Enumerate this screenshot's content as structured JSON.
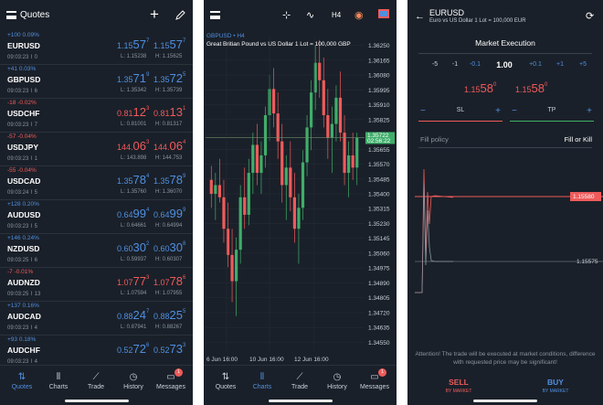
{
  "quotes": {
    "title": "Quotes",
    "rows": [
      {
        "change": "+100 0.09%",
        "dir": "pos",
        "symbol": "EURUSD",
        "time": "09:03:23 ⌇ 0",
        "bid_main": "1.15",
        "bid_big": "57",
        "bid_sup": "7",
        "ask_main": "1.15",
        "ask_big": "57",
        "ask_sup": "7",
        "low": "L: 1.15238",
        "high": "H: 1.15625",
        "bid_dir": "pos",
        "ask_dir": "pos"
      },
      {
        "change": "+41 0.03%",
        "dir": "pos",
        "symbol": "GBPUSD",
        "time": "09:03:23 ⌇ 6",
        "bid_main": "1.35",
        "bid_big": "71",
        "bid_sup": "9",
        "ask_main": "1.35",
        "ask_big": "72",
        "ask_sup": "5",
        "low": "L: 1.35342",
        "high": "H: 1.35739",
        "bid_dir": "pos",
        "ask_dir": "pos"
      },
      {
        "change": "-18 -0.02%",
        "dir": "neg",
        "symbol": "USDCHF",
        "time": "09:03:23 ⌇ 7",
        "bid_main": "0.81",
        "bid_big": "12",
        "bid_sup": "3",
        "ask_main": "0.81",
        "ask_big": "13",
        "ask_sup": "1",
        "low": "L: 0.81001",
        "high": "H: 0.81317",
        "bid_dir": "neg",
        "ask_dir": "neg"
      },
      {
        "change": "-57 -0.04%",
        "dir": "neg",
        "symbol": "USDJPY",
        "time": "09:03:23 ⌇ 1",
        "bid_main": "144.",
        "bid_big": "06",
        "bid_sup": "3",
        "ask_main": "144.",
        "ask_big": "06",
        "ask_sup": "4",
        "low": "L: 143.898",
        "high": "H: 144.753",
        "bid_dir": "neg",
        "ask_dir": "neg"
      },
      {
        "change": "-55 -0.04%",
        "dir": "neg",
        "symbol": "USDCAD",
        "time": "09:03:24 ⌇ 5",
        "bid_main": "1.35",
        "bid_big": "78",
        "bid_sup": "4",
        "ask_main": "1.35",
        "ask_big": "78",
        "ask_sup": "9",
        "low": "L: 1.35760",
        "high": "H: 1.36070",
        "bid_dir": "pos",
        "ask_dir": "pos"
      },
      {
        "change": "+128 0.20%",
        "dir": "pos",
        "symbol": "AUDUSD",
        "time": "09:03:23 ⌇ 5",
        "bid_main": "0.64",
        "bid_big": "99",
        "bid_sup": "4",
        "ask_main": "0.64",
        "ask_big": "99",
        "ask_sup": "9",
        "low": "L: 0.64661",
        "high": "H: 0.64994",
        "bid_dir": "pos",
        "ask_dir": "pos"
      },
      {
        "change": "+146 0.24%",
        "dir": "pos",
        "symbol": "NZDUSD",
        "time": "09:03:25 ⌇ 6",
        "bid_main": "0.60",
        "bid_big": "30",
        "bid_sup": "2",
        "ask_main": "0.60",
        "ask_big": "30",
        "ask_sup": "8",
        "low": "L: 0.59937",
        "high": "H: 0.60307",
        "bid_dir": "pos",
        "ask_dir": "pos"
      },
      {
        "change": "-7 -0.01%",
        "dir": "neg",
        "symbol": "AUDNZD",
        "time": "09:03:25 ⌇ 13",
        "bid_main": "1.07",
        "bid_big": "77",
        "bid_sup": "3",
        "ask_main": "1.07",
        "ask_big": "78",
        "ask_sup": "6",
        "low": "L: 1.07594",
        "high": "H: 1.07955",
        "bid_dir": "neg",
        "ask_dir": "neg"
      },
      {
        "change": "+137 0.16%",
        "dir": "pos",
        "symbol": "AUDCAD",
        "time": "09:03:23 ⌇ 4",
        "bid_main": "0.88",
        "bid_big": "24",
        "bid_sup": "7",
        "ask_main": "0.88",
        "ask_big": "25",
        "ask_sup": "5",
        "low": "L: 0.87941",
        "high": "H: 0.88267",
        "bid_dir": "pos",
        "ask_dir": "pos"
      },
      {
        "change": "+93 0.18%",
        "dir": "pos",
        "symbol": "AUDCHF",
        "time": "09:03:23 ⌇ 4",
        "bid_main": "0.52",
        "bid_big": "72",
        "bid_sup": "6",
        "ask_main": "0.52",
        "ask_big": "73",
        "ask_sup": "3",
        "low": "",
        "high": "",
        "bid_dir": "pos",
        "ask_dir": "pos"
      }
    ]
  },
  "nav": {
    "quotes": "Quotes",
    "charts": "Charts",
    "trade": "Trade",
    "history": "History",
    "messages": "Messages",
    "badge": "1"
  },
  "chart": {
    "timeframe": "H4",
    "legend_symbol": "GBPUSD • H4",
    "legend_desc": "Great Britian Pound vs US Dollar 1 Lot = 100,000 GBP",
    "current_price": "1.35722",
    "current_time": "02:56:22"
  },
  "chart_data": {
    "type": "candlestick",
    "title": "GBPUSD • H4",
    "y_ticks": [
      "1.36250",
      "1.36165",
      "1.36080",
      "1.35995",
      "1.35910",
      "1.35825",
      "1.35740",
      "1.35655",
      "1.35570",
      "1.35485",
      "1.35400",
      "1.35315",
      "1.35230",
      "1.35145",
      "1.35060",
      "1.34975",
      "1.34890",
      "1.34805",
      "1.34720",
      "1.34635",
      "1.34550"
    ],
    "ylim": [
      1.345,
      1.363
    ],
    "x_ticks": [
      "6 Jun 16:00",
      "10 Jun 16:00",
      "12 Jun 16:00"
    ],
    "candles": [
      [
        1.3548,
        1.3556,
        1.3532,
        1.354
      ],
      [
        1.354,
        1.3552,
        1.3525,
        1.3545
      ],
      [
        1.3545,
        1.356,
        1.3535,
        1.3538
      ],
      [
        1.3538,
        1.3548,
        1.3512,
        1.352
      ],
      [
        1.352,
        1.3535,
        1.3498,
        1.3505
      ],
      [
        1.3505,
        1.352,
        1.3478,
        1.349
      ],
      [
        1.349,
        1.3515,
        1.347,
        1.3508
      ],
      [
        1.3508,
        1.3545,
        1.35,
        1.3538
      ],
      [
        1.3538,
        1.3555,
        1.352,
        1.3528
      ],
      [
        1.3528,
        1.356,
        1.3522,
        1.3552
      ],
      [
        1.3552,
        1.3575,
        1.354,
        1.3568
      ],
      [
        1.3568,
        1.358,
        1.3545,
        1.3552
      ],
      [
        1.3552,
        1.357,
        1.354,
        1.3562
      ],
      [
        1.3562,
        1.359,
        1.3555,
        1.3585
      ],
      [
        1.3585,
        1.3608,
        1.357,
        1.36
      ],
      [
        1.36,
        1.3612,
        1.3578,
        1.3586
      ],
      [
        1.3586,
        1.3598,
        1.356,
        1.357
      ],
      [
        1.357,
        1.358,
        1.3535,
        1.3545
      ],
      [
        1.3545,
        1.3562,
        1.3525,
        1.3555
      ],
      [
        1.3555,
        1.357,
        1.353,
        1.3538
      ],
      [
        1.3538,
        1.3552,
        1.3512,
        1.352
      ],
      [
        1.352,
        1.354,
        1.35,
        1.3532
      ],
      [
        1.3532,
        1.3565,
        1.3525,
        1.3558
      ],
      [
        1.3558,
        1.3585,
        1.355,
        1.3578
      ],
      [
        1.3578,
        1.3605,
        1.3565,
        1.3598
      ],
      [
        1.3598,
        1.3625,
        1.3588,
        1.3615
      ],
      [
        1.3615,
        1.3628,
        1.3595,
        1.3605
      ],
      [
        1.3605,
        1.3618,
        1.3578,
        1.3585
      ],
      [
        1.3585,
        1.36,
        1.356,
        1.3572
      ],
      [
        1.3572,
        1.359,
        1.3552,
        1.358
      ],
      [
        1.358,
        1.3602,
        1.357,
        1.3595
      ],
      [
        1.3595,
        1.361,
        1.357,
        1.3575
      ],
      [
        1.3575,
        1.3585,
        1.3545,
        1.3552
      ],
      [
        1.3552,
        1.357,
        1.3538,
        1.3562
      ],
      [
        1.3562,
        1.3575,
        1.3548,
        1.3555
      ],
      [
        1.3555,
        1.3575,
        1.3545,
        1.3572
      ]
    ]
  },
  "order": {
    "symbol": "EURUSD",
    "desc": "Euro vs US Dollar 1 Lot = 100,000 EUR",
    "execution": "Market Execution",
    "steps": [
      "-5",
      "-1",
      "-0.1",
      "1.00",
      "+0.1",
      "+1",
      "+5"
    ],
    "sell_main": "1.15",
    "sell_big": "58",
    "sell_sup": "0",
    "buy_main": "1.15",
    "buy_big": "58",
    "buy_sup": "0",
    "sl_label": "SL",
    "tp_label": "TP",
    "fill_label": "Fill policy",
    "fill_value": "Fill or Kill",
    "price_tag": "1.15580",
    "price_low": "1.15575",
    "warning": "Attention! The trade will be executed at market conditions, difference with requested price may be significant!",
    "sell_label": "SELL",
    "sell_sub": "BY MARKET",
    "buy_label": "BUY",
    "buy_sub": "BY MARKET",
    "colors": {
      "sell": "#ef5b5b",
      "buy": "#4f8fe0",
      "sl": "#ef5b5b",
      "tp": "#3fae6a"
    }
  }
}
